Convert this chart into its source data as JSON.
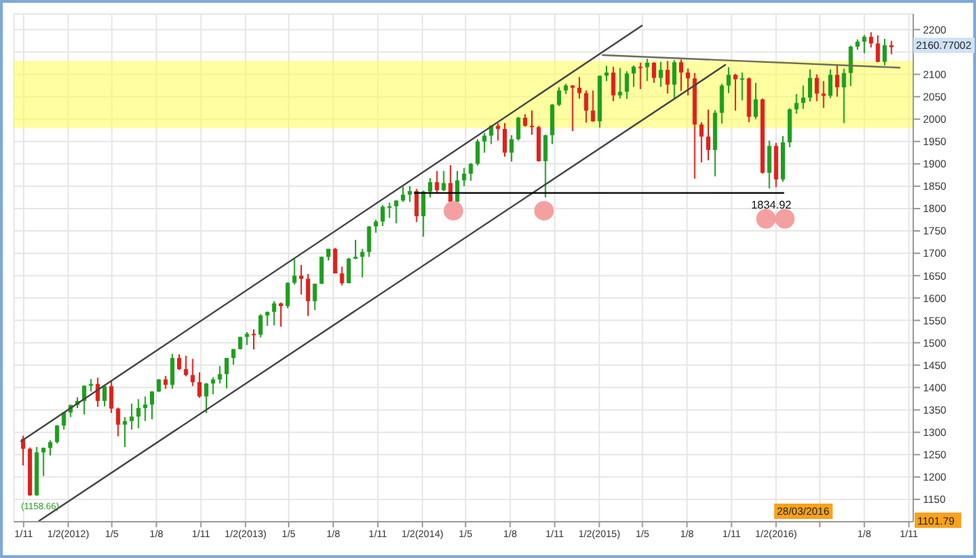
{
  "chart_data": {
    "type": "candlestick",
    "x": [
      "2011-10-31",
      "2011-11-14",
      "2011-11-28",
      "2011-12-12",
      "2011-12-26",
      "2012-01-09",
      "2012-01-23",
      "2012-02-06",
      "2012-02-20",
      "2012-03-05",
      "2012-03-19",
      "2012-04-02",
      "2012-04-16",
      "2012-04-30",
      "2012-05-14",
      "2012-05-28",
      "2012-06-11",
      "2012-06-25",
      "2012-07-09",
      "2012-07-23",
      "2012-08-06",
      "2012-08-20",
      "2012-09-03",
      "2012-09-17",
      "2012-10-01",
      "2012-10-15",
      "2012-10-29",
      "2012-11-12",
      "2012-11-26",
      "2012-12-10",
      "2012-12-24",
      "2013-01-07",
      "2013-01-21",
      "2013-02-04",
      "2013-02-18",
      "2013-03-04",
      "2013-03-18",
      "2013-04-01",
      "2013-04-15",
      "2013-04-29",
      "2013-05-13",
      "2013-05-27",
      "2013-06-10",
      "2013-06-24",
      "2013-07-08",
      "2013-07-22",
      "2013-08-05",
      "2013-08-19",
      "2013-09-02",
      "2013-09-16",
      "2013-09-30",
      "2013-10-14",
      "2013-10-28",
      "2013-11-11",
      "2013-11-25",
      "2013-12-09",
      "2013-12-23",
      "2014-01-06",
      "2014-01-20",
      "2014-02-03",
      "2014-02-17",
      "2014-03-03",
      "2014-03-17",
      "2014-03-31",
      "2014-04-14",
      "2014-04-28",
      "2014-05-12",
      "2014-05-26",
      "2014-06-09",
      "2014-06-23",
      "2014-07-07",
      "2014-07-21",
      "2014-08-04",
      "2014-08-18",
      "2014-09-01",
      "2014-09-15",
      "2014-09-29",
      "2014-10-13",
      "2014-10-27",
      "2014-11-10",
      "2014-11-24",
      "2014-12-08",
      "2014-12-22",
      "2015-01-05",
      "2015-01-19",
      "2015-02-02",
      "2015-02-16",
      "2015-03-02",
      "2015-03-16",
      "2015-03-30",
      "2015-04-13",
      "2015-04-27",
      "2015-05-11",
      "2015-05-25",
      "2015-06-08",
      "2015-06-22",
      "2015-07-06",
      "2015-07-20",
      "2015-08-03",
      "2015-08-17",
      "2015-08-31",
      "2015-09-14",
      "2015-09-28",
      "2015-10-12",
      "2015-10-26",
      "2015-11-09",
      "2015-11-23",
      "2015-12-07",
      "2015-12-21",
      "2016-01-04",
      "2016-01-18",
      "2016-02-01",
      "2016-02-15",
      "2016-02-29",
      "2016-03-14",
      "2016-03-28",
      "2016-04-11",
      "2016-04-25",
      "2016-05-09",
      "2016-05-23",
      "2016-06-06",
      "2016-06-20",
      "2016-07-04",
      "2016-07-18",
      "2016-08-01",
      "2016-08-15",
      "2016-08-29",
      "2016-09-12",
      "2016-09-26"
    ],
    "ohlc": [
      [
        1285,
        1292,
        1226,
        1263
      ],
      [
        1263,
        1266,
        1158,
        1159
      ],
      [
        1159,
        1267,
        1158,
        1255
      ],
      [
        1255,
        1266,
        1202,
        1265
      ],
      [
        1265,
        1282,
        1248,
        1278
      ],
      [
        1278,
        1316,
        1275,
        1315
      ],
      [
        1315,
        1345,
        1306,
        1344
      ],
      [
        1344,
        1361,
        1334,
        1361
      ],
      [
        1361,
        1378,
        1354,
        1370
      ],
      [
        1370,
        1405,
        1340,
        1404
      ],
      [
        1404,
        1419,
        1391,
        1408
      ],
      [
        1408,
        1422,
        1357,
        1370
      ],
      [
        1370,
        1406,
        1358,
        1403
      ],
      [
        1403,
        1415,
        1343,
        1353
      ],
      [
        1353,
        1355,
        1291,
        1317
      ],
      [
        1317,
        1334,
        1267,
        1325
      ],
      [
        1325,
        1364,
        1306,
        1335
      ],
      [
        1335,
        1374,
        1309,
        1354
      ],
      [
        1354,
        1380,
        1325,
        1362
      ],
      [
        1362,
        1392,
        1329,
        1391
      ],
      [
        1391,
        1419,
        1390,
        1418
      ],
      [
        1418,
        1426,
        1397,
        1406
      ],
      [
        1406,
        1475,
        1397,
        1466
      ],
      [
        1466,
        1474,
        1439,
        1441
      ],
      [
        1441,
        1471,
        1425,
        1428
      ],
      [
        1428,
        1464,
        1403,
        1412
      ],
      [
        1412,
        1434,
        1377,
        1380
      ],
      [
        1380,
        1410,
        1343,
        1409
      ],
      [
        1409,
        1423,
        1385,
        1418
      ],
      [
        1418,
        1448,
        1409,
        1430
      ],
      [
        1430,
        1466,
        1398,
        1466
      ],
      [
        1466,
        1486,
        1451,
        1486
      ],
      [
        1486,
        1514,
        1485,
        1513
      ],
      [
        1513,
        1524,
        1495,
        1520
      ],
      [
        1520,
        1530,
        1485,
        1518
      ],
      [
        1518,
        1564,
        1512,
        1561
      ],
      [
        1561,
        1570,
        1538,
        1569
      ],
      [
        1569,
        1593,
        1539,
        1588
      ],
      [
        1588,
        1590,
        1536,
        1582
      ],
      [
        1582,
        1635,
        1577,
        1634
      ],
      [
        1634,
        1687,
        1630,
        1650
      ],
      [
        1650,
        1674,
        1608,
        1643
      ],
      [
        1643,
        1654,
        1560,
        1593
      ],
      [
        1593,
        1632,
        1573,
        1632
      ],
      [
        1632,
        1693,
        1631,
        1692
      ],
      [
        1692,
        1710,
        1684,
        1710
      ],
      [
        1710,
        1712,
        1655,
        1655
      ],
      [
        1655,
        1670,
        1628,
        1633
      ],
      [
        1633,
        1690,
        1633,
        1688
      ],
      [
        1688,
        1730,
        1687,
        1692
      ],
      [
        1692,
        1710,
        1646,
        1703
      ],
      [
        1703,
        1761,
        1692,
        1760
      ],
      [
        1760,
        1775,
        1746,
        1771
      ],
      [
        1771,
        1808,
        1761,
        1804
      ],
      [
        1804,
        1813,
        1779,
        1805
      ],
      [
        1805,
        1818,
        1767,
        1818
      ],
      [
        1818,
        1849,
        1815,
        1831
      ],
      [
        1831,
        1850,
        1815,
        1839
      ],
      [
        1839,
        1844,
        1770,
        1783
      ],
      [
        1783,
        1840,
        1737,
        1838
      ],
      [
        1838,
        1868,
        1825,
        1859
      ],
      [
        1859,
        1884,
        1834,
        1841
      ],
      [
        1841,
        1884,
        1839,
        1857
      ],
      [
        1857,
        1897,
        1814,
        1815
      ],
      [
        1815,
        1884,
        1812,
        1863
      ],
      [
        1863,
        1891,
        1850,
        1878
      ],
      [
        1878,
        1902,
        1862,
        1900
      ],
      [
        1900,
        1955,
        1896,
        1950
      ],
      [
        1950,
        1969,
        1925,
        1963
      ],
      [
        1963,
        1986,
        1944,
        1985
      ],
      [
        1985,
        1991,
        1952,
        1978
      ],
      [
        1978,
        1991,
        1916,
        1925
      ],
      [
        1925,
        1964,
        1905,
        1955
      ],
      [
        1955,
        2005,
        1952,
        2003
      ],
      [
        2003,
        2011,
        1983,
        1985
      ],
      [
        1985,
        2019,
        1965,
        1982
      ],
      [
        1982,
        1985,
        1905,
        1906
      ],
      [
        1906,
        1965,
        1825,
        1964
      ],
      [
        1964,
        2034,
        1944,
        2032
      ],
      [
        2032,
        2071,
        2029,
        2064
      ],
      [
        2064,
        2079,
        2056,
        2075
      ],
      [
        2075,
        2076,
        1973,
        2070
      ],
      [
        2070,
        2094,
        2046,
        2058
      ],
      [
        2058,
        2064,
        1992,
        2019
      ],
      [
        2019,
        2064,
        1994,
        1995
      ],
      [
        1995,
        2097,
        1981,
        2097
      ],
      [
        2097,
        2119,
        2085,
        2104
      ],
      [
        2104,
        2117,
        2040,
        2053
      ],
      [
        2053,
        2114,
        2046,
        2061
      ],
      [
        2061,
        2107,
        2045,
        2102
      ],
      [
        2102,
        2120,
        2072,
        2117
      ],
      [
        2117,
        2126,
        2067,
        2116
      ],
      [
        2116,
        2135,
        2085,
        2126
      ],
      [
        2126,
        2127,
        2081,
        2092
      ],
      [
        2092,
        2128,
        2072,
        2110
      ],
      [
        2110,
        2130,
        2057,
        2077
      ],
      [
        2077,
        2132,
        2044,
        2127
      ],
      [
        2127,
        2133,
        2063,
        2104
      ],
      [
        2104,
        2113,
        2053,
        2091
      ],
      [
        2091,
        2103,
        1867,
        1988
      ],
      [
        1988,
        1993,
        1903,
        1961
      ],
      [
        1961,
        2021,
        1908,
        1931
      ],
      [
        1931,
        2020,
        1872,
        2014
      ],
      [
        2014,
        2079,
        1990,
        2075
      ],
      [
        2075,
        2116,
        2058,
        2099
      ],
      [
        2099,
        2101,
        2019,
        2089
      ],
      [
        2089,
        2104,
        2042,
        2091
      ],
      [
        2091,
        2093,
        1993,
        2005
      ],
      [
        2005,
        2081,
        2000,
        2044
      ],
      [
        2044,
        2046,
        1878,
        1880
      ],
      [
        1880,
        1952,
        1845,
        1940
      ],
      [
        1940,
        1947,
        1848,
        1865
      ],
      [
        1865,
        1962,
        1860,
        1948
      ],
      [
        1948,
        2024,
        1937,
        2022
      ],
      [
        2022,
        2056,
        2012,
        2036
      ],
      [
        2036,
        2075,
        2023,
        2048
      ],
      [
        2048,
        2111,
        2039,
        2092
      ],
      [
        2092,
        2100,
        2040,
        2057
      ],
      [
        2057,
        2085,
        2025,
        2052
      ],
      [
        2052,
        2111,
        2047,
        2099
      ],
      [
        2099,
        2120,
        2050,
        2071
      ],
      [
        2071,
        2113,
        1991,
        2103
      ],
      [
        2103,
        2164,
        2074,
        2162
      ],
      [
        2162,
        2178,
        2155,
        2173
      ],
      [
        2173,
        2188,
        2147,
        2184
      ],
      [
        2184,
        2194,
        2160,
        2169
      ],
      [
        2169,
        2187,
        2127,
        2128
      ],
      [
        2128,
        2179,
        2120,
        2165
      ],
      [
        2165,
        2175,
        2145,
        2160.77
      ]
    ],
    "colors": [
      "#e0201b",
      "#e0201b",
      "#1e9e1e",
      "#1e9e1e",
      "#1e9e1e",
      "#1e9e1e",
      "#1e9e1e",
      "#1e9e1e",
      "#1e9e1e",
      "#1e9e1e",
      "#1e9e1e",
      "#e0201b",
      "#1e9e1e",
      "#e0201b",
      "#e0201b",
      "#1e9e1e",
      "#1e9e1e",
      "#1e9e1e",
      "#1e9e1e",
      "#1e9e1e",
      "#1e9e1e",
      "#e0201b",
      "#1e9e1e",
      "#e0201b",
      "#e0201b",
      "#e0201b",
      "#e0201b",
      "#1e9e1e",
      "#1e9e1e",
      "#1e9e1e",
      "#1e9e1e",
      "#1e9e1e",
      "#1e9e1e",
      "#1e9e1e",
      "#e0201b",
      "#1e9e1e",
      "#1e9e1e",
      "#1e9e1e",
      "#e0201b",
      "#1e9e1e",
      "#1e9e1e",
      "#e0201b",
      "#e0201b",
      "#1e9e1e",
      "#1e9e1e",
      "#1e9e1e",
      "#e0201b",
      "#e0201b",
      "#1e9e1e",
      "#1e9e1e",
      "#1e9e1e",
      "#1e9e1e",
      "#1e9e1e",
      "#1e9e1e",
      "#1e9e1e",
      "#1e9e1e",
      "#1e9e1e",
      "#1e9e1e",
      "#e0201b",
      "#1e9e1e",
      "#1e9e1e",
      "#e0201b",
      "#1e9e1e",
      "#e0201b",
      "#1e9e1e",
      "#1e9e1e",
      "#1e9e1e",
      "#1e9e1e",
      "#1e9e1e",
      "#1e9e1e",
      "#e0201b",
      "#e0201b",
      "#1e9e1e",
      "#1e9e1e",
      "#e0201b",
      "#e0201b",
      "#e0201b",
      "#1e9e1e",
      "#1e9e1e",
      "#1e9e1e",
      "#1e9e1e",
      "#e0201b",
      "#e0201b",
      "#e0201b",
      "#e0201b",
      "#1e9e1e",
      "#1e9e1e",
      "#e0201b",
      "#1e9e1e",
      "#1e9e1e",
      "#1e9e1e",
      "#e0201b",
      "#1e9e1e",
      "#e0201b",
      "#1e9e1e",
      "#e0201b",
      "#1e9e1e",
      "#e0201b",
      "#e0201b",
      "#e0201b",
      "#e0201b",
      "#e0201b",
      "#1e9e1e",
      "#1e9e1e",
      "#1e9e1e",
      "#e0201b",
      "#1e9e1e",
      "#e0201b",
      "#1e9e1e",
      "#e0201b",
      "#1e9e1e",
      "#e0201b",
      "#1e9e1e",
      "#1e9e1e",
      "#1e9e1e",
      "#1e9e1e",
      "#1e9e1e",
      "#e0201b",
      "#e0201b",
      "#1e9e1e",
      "#e0201b",
      "#1e9e1e",
      "#1e9e1e",
      "#1e9e1e",
      "#1e9e1e",
      "#e0201b",
      "#e0201b",
      "#1e9e1e",
      "#e0201b"
    ],
    "series": [
      {
        "type": "line",
        "x": [
          "2011-10-27",
          "2015-04-30"
        ],
        "values": [
          1280,
          2209
        ],
        "color": "#444444"
      },
      {
        "type": "line",
        "x": [
          "2011-12-03",
          "2015-10-19"
        ],
        "values": [
          1102,
          2121
        ],
        "color": "#444444"
      },
      {
        "type": "line",
        "x": [
          "2015-02-08",
          "2016-10-13"
        ],
        "values": [
          2143,
          2115
        ],
        "color": "#6e6e5a"
      },
      {
        "type": "line",
        "x": [
          "2014-01-16",
          "2016-02-16"
        ],
        "values": [
          1834.92,
          1834.92
        ],
        "color": "#000000"
      },
      {
        "type": "scatter",
        "x": [
          "2014-04-06",
          "2014-10-10",
          "2016-01-11",
          "2016-02-19"
        ],
        "values": [
          1795,
          1795,
          1777,
          1777
        ],
        "color": "#f4a0a0",
        "marker": "circle"
      }
    ],
    "bands": [
      {
        "axis": "y",
        "from": 1980,
        "to": 2130,
        "color": "#ffff55"
      }
    ],
    "annotations": [
      {
        "text": "1834.92",
        "x": "2016-01-22",
        "y": 1834.92
      },
      {
        "text": "(1158.66)",
        "x": "2011-12-05",
        "y": 1158
      },
      "28/03/2016",
      {
        "text": "1101.79",
        "y": 1101.79
      },
      "2160.77002"
    ],
    "xlim": [
      "2011-10-12",
      "2016-11-10"
    ],
    "xticks": [
      {
        "value": "2011-11-01",
        "label": "1/11"
      },
      {
        "value": "2012-02-01",
        "label": "1/2(2012)"
      },
      {
        "value": "2012-05-01",
        "label": "1/5"
      },
      {
        "value": "2012-08-01",
        "label": "1/8"
      },
      {
        "value": "2012-11-01",
        "label": "1/11"
      },
      {
        "value": "2013-02-01",
        "label": "1/2(2013)"
      },
      {
        "value": "2013-05-01",
        "label": "1/5"
      },
      {
        "value": "2013-08-01",
        "label": "1/8"
      },
      {
        "value": "2013-11-01",
        "label": "1/11"
      },
      {
        "value": "2014-02-01",
        "label": "1/2(2014)"
      },
      {
        "value": "2014-05-01",
        "label": "1/5"
      },
      {
        "value": "2014-08-01",
        "label": "1/8"
      },
      {
        "value": "2014-11-01",
        "label": "1/11"
      },
      {
        "value": "2015-02-01",
        "label": "1/2(2015)"
      },
      {
        "value": "2015-05-01",
        "label": "1/5"
      },
      {
        "value": "2015-08-01",
        "label": "1/8"
      },
      {
        "value": "2015-11-01",
        "label": "1/11"
      },
      {
        "value": "2016-02-01",
        "label": "1/2(2016)"
      },
      {
        "value": "2016-05-01",
        "label": null
      },
      {
        "value": "2016-08-01",
        "label": "1/8"
      },
      {
        "value": "2016-11-01",
        "label": "1/11"
      }
    ],
    "ylim": [
      1100,
      2235
    ],
    "yticks": [
      1150,
      1200,
      1250,
      1300,
      1350,
      1400,
      1450,
      1500,
      1550,
      1600,
      1650,
      1700,
      1750,
      1800,
      1850,
      1900,
      1950,
      2000,
      2050,
      2100,
      {
        "value": 2150,
        "label": null
      },
      2200
    ],
    "grid": true
  }
}
